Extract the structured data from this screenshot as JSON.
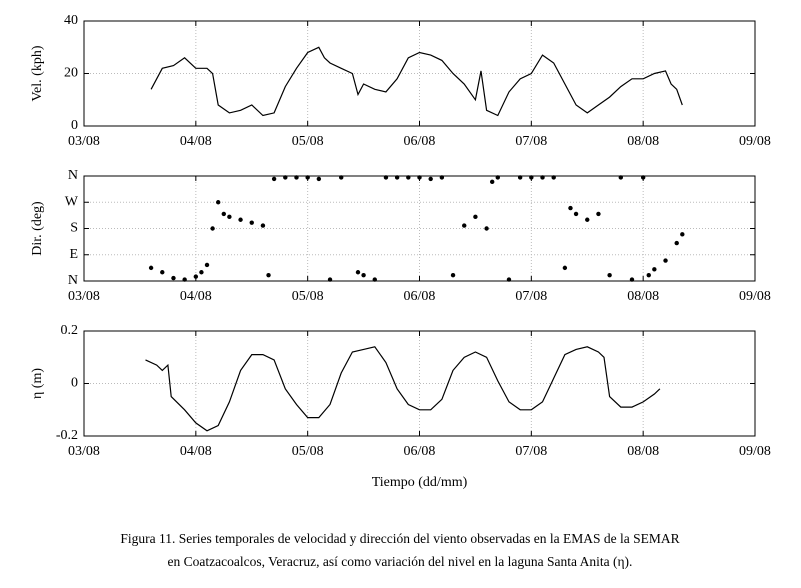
{
  "chart_data": [
    {
      "type": "line",
      "ylabel": "Vel. (kph)",
      "color": "#000000",
      "grid": true,
      "x": [
        3.6,
        3.7,
        3.8,
        3.9,
        4.0,
        4.1,
        4.15,
        4.2,
        4.3,
        4.4,
        4.5,
        4.6,
        4.7,
        4.8,
        4.9,
        5.0,
        5.1,
        5.15,
        5.2,
        5.3,
        5.4,
        5.45,
        5.5,
        5.6,
        5.7,
        5.8,
        5.9,
        6.0,
        6.1,
        6.2,
        6.3,
        6.4,
        6.5,
        6.55,
        6.6,
        6.7,
        6.8,
        6.9,
        7.0,
        7.1,
        7.2,
        7.3,
        7.4,
        7.5,
        7.6,
        7.7,
        7.8,
        7.9,
        8.0,
        8.1,
        8.2,
        8.25,
        8.3,
        8.35
      ],
      "values": [
        14,
        22,
        23,
        26,
        22,
        22,
        20,
        8,
        5,
        6,
        8,
        4,
        5,
        15,
        22,
        28,
        30,
        26,
        24,
        22,
        20,
        12,
        16,
        14,
        13,
        18,
        26,
        28,
        27,
        25,
        20,
        16,
        10,
        21,
        6,
        4,
        13,
        18,
        20,
        27,
        24,
        16,
        8,
        5,
        8,
        11,
        15,
        18,
        18,
        20,
        21,
        16,
        14,
        8
      ],
      "xlim": [
        3,
        9
      ],
      "xticks": [
        {
          "value": 3,
          "label": "03/08"
        },
        {
          "value": 4,
          "label": "04/08"
        },
        {
          "value": 5,
          "label": "05/08"
        },
        {
          "value": 6,
          "label": "06/08"
        },
        {
          "value": 7,
          "label": "07/08"
        },
        {
          "value": 8,
          "label": "08/08"
        },
        {
          "value": 9,
          "label": "09/08"
        }
      ],
      "ylim": [
        0,
        40
      ],
      "yticks": [
        0,
        20,
        40
      ]
    },
    {
      "type": "scatter",
      "ylabel": "Dir. (deg)",
      "color": "#000000",
      "grid": true,
      "x": [
        3.6,
        3.7,
        3.8,
        3.9,
        4.0,
        4.05,
        4.1,
        4.15,
        4.2,
        4.25,
        4.3,
        4.4,
        4.5,
        4.6,
        4.65,
        4.7,
        4.8,
        4.9,
        5.0,
        5.1,
        5.2,
        5.3,
        5.45,
        5.5,
        5.6,
        5.7,
        5.8,
        5.9,
        6.0,
        6.1,
        6.2,
        6.3,
        6.4,
        6.5,
        6.6,
        6.65,
        6.7,
        6.8,
        6.9,
        7.0,
        7.1,
        7.2,
        7.3,
        7.35,
        7.4,
        7.5,
        7.6,
        7.7,
        7.8,
        7.9,
        8.0,
        8.05,
        8.1,
        8.2,
        8.3,
        8.35
      ],
      "values": [
        45,
        30,
        10,
        5,
        15,
        30,
        55,
        180,
        270,
        230,
        220,
        210,
        200,
        190,
        20,
        350,
        355,
        355,
        355,
        350,
        5,
        355,
        30,
        20,
        5,
        355,
        355,
        355,
        355,
        350,
        355,
        20,
        190,
        220,
        180,
        340,
        355,
        5,
        355,
        355,
        355,
        355,
        45,
        250,
        230,
        210,
        230,
        20,
        355,
        5,
        355,
        20,
        40,
        70,
        130,
        160
      ],
      "xlim": [
        3,
        9
      ],
      "xticks": [
        {
          "value": 3,
          "label": "03/08"
        },
        {
          "value": 4,
          "label": "04/08"
        },
        {
          "value": 5,
          "label": "05/08"
        },
        {
          "value": 6,
          "label": "06/08"
        },
        {
          "value": 7,
          "label": "07/08"
        },
        {
          "value": 8,
          "label": "08/08"
        },
        {
          "value": 9,
          "label": "09/08"
        }
      ],
      "ylim": [
        0,
        360
      ],
      "yticks": [
        {
          "value": 0,
          "label": "N"
        },
        {
          "value": 90,
          "label": "E"
        },
        {
          "value": 180,
          "label": "S"
        },
        {
          "value": 270,
          "label": "W"
        },
        {
          "value": 360,
          "label": "N"
        }
      ]
    },
    {
      "type": "line",
      "ylabel": "η (m)",
      "xlabel": "Tiempo (dd/mm)",
      "color": "#000000",
      "grid": true,
      "x": [
        3.55,
        3.65,
        3.7,
        3.75,
        3.78,
        3.9,
        4.0,
        4.1,
        4.2,
        4.3,
        4.4,
        4.5,
        4.6,
        4.7,
        4.8,
        4.9,
        5.0,
        5.1,
        5.2,
        5.3,
        5.4,
        5.5,
        5.6,
        5.7,
        5.8,
        5.9,
        6.0,
        6.1,
        6.2,
        6.3,
        6.4,
        6.5,
        6.6,
        6.7,
        6.8,
        6.9,
        7.0,
        7.1,
        7.2,
        7.3,
        7.4,
        7.5,
        7.6,
        7.65,
        7.7,
        7.8,
        7.9,
        8.0,
        8.1,
        8.15
      ],
      "values": [
        0.09,
        0.07,
        0.05,
        0.07,
        -0.05,
        -0.1,
        -0.15,
        -0.18,
        -0.16,
        -0.07,
        0.05,
        0.11,
        0.11,
        0.09,
        -0.02,
        -0.08,
        -0.13,
        -0.13,
        -0.08,
        0.04,
        0.12,
        0.13,
        0.14,
        0.08,
        -0.02,
        -0.08,
        -0.1,
        -0.1,
        -0.06,
        0.05,
        0.1,
        0.12,
        0.1,
        0.01,
        -0.07,
        -0.1,
        -0.1,
        -0.07,
        0.02,
        0.11,
        0.13,
        0.14,
        0.12,
        0.1,
        -0.05,
        -0.09,
        -0.09,
        -0.07,
        -0.04,
        -0.02
      ],
      "xlim": [
        3,
        9
      ],
      "xticks": [
        {
          "value": 3,
          "label": "03/08"
        },
        {
          "value": 4,
          "label": "04/08"
        },
        {
          "value": 5,
          "label": "05/08"
        },
        {
          "value": 6,
          "label": "06/08"
        },
        {
          "value": 7,
          "label": "07/08"
        },
        {
          "value": 8,
          "label": "08/08"
        },
        {
          "value": 9,
          "label": "09/08"
        }
      ],
      "ylim": [
        -0.2,
        0.2
      ],
      "yticks": [
        -0.2,
        0,
        0.2
      ]
    }
  ],
  "caption": [
    "Figura 11. Series temporales de velocidad y dirección del viento observadas en la EMAS de la SEMAR",
    "en Coatzacoalcos, Veracruz, así como variación del nivel en la laguna Santa Anita (η)."
  ]
}
